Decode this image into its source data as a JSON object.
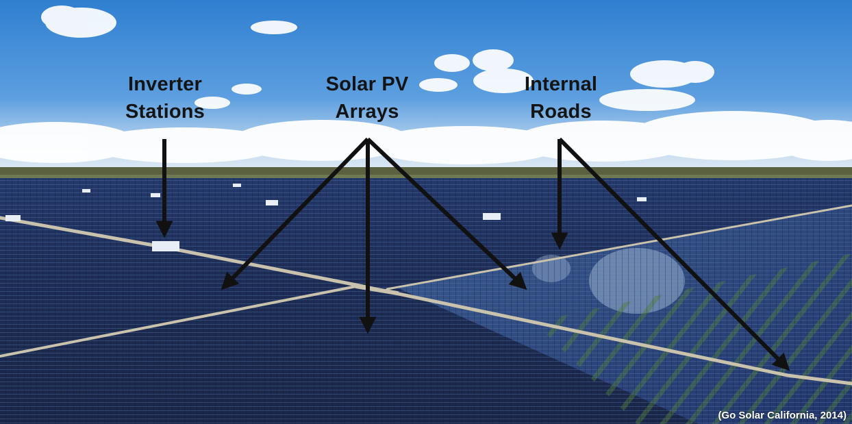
{
  "labels": {
    "inverter": [
      "Inverter",
      "Stations"
    ],
    "solar": [
      "Solar PV",
      "Arrays"
    ],
    "roads": [
      "Internal",
      "Roads"
    ]
  },
  "credit": "(Go Solar California, 2014)",
  "colors": {
    "sky_top": "#2f7fd0",
    "sky_horizon": "#dbe9f5",
    "panel_dark": "#1d2d55",
    "panel_light": "#4a6a9e",
    "grass": "#4f7f36",
    "road": "#c9c3ad",
    "arrow": "#111111"
  }
}
